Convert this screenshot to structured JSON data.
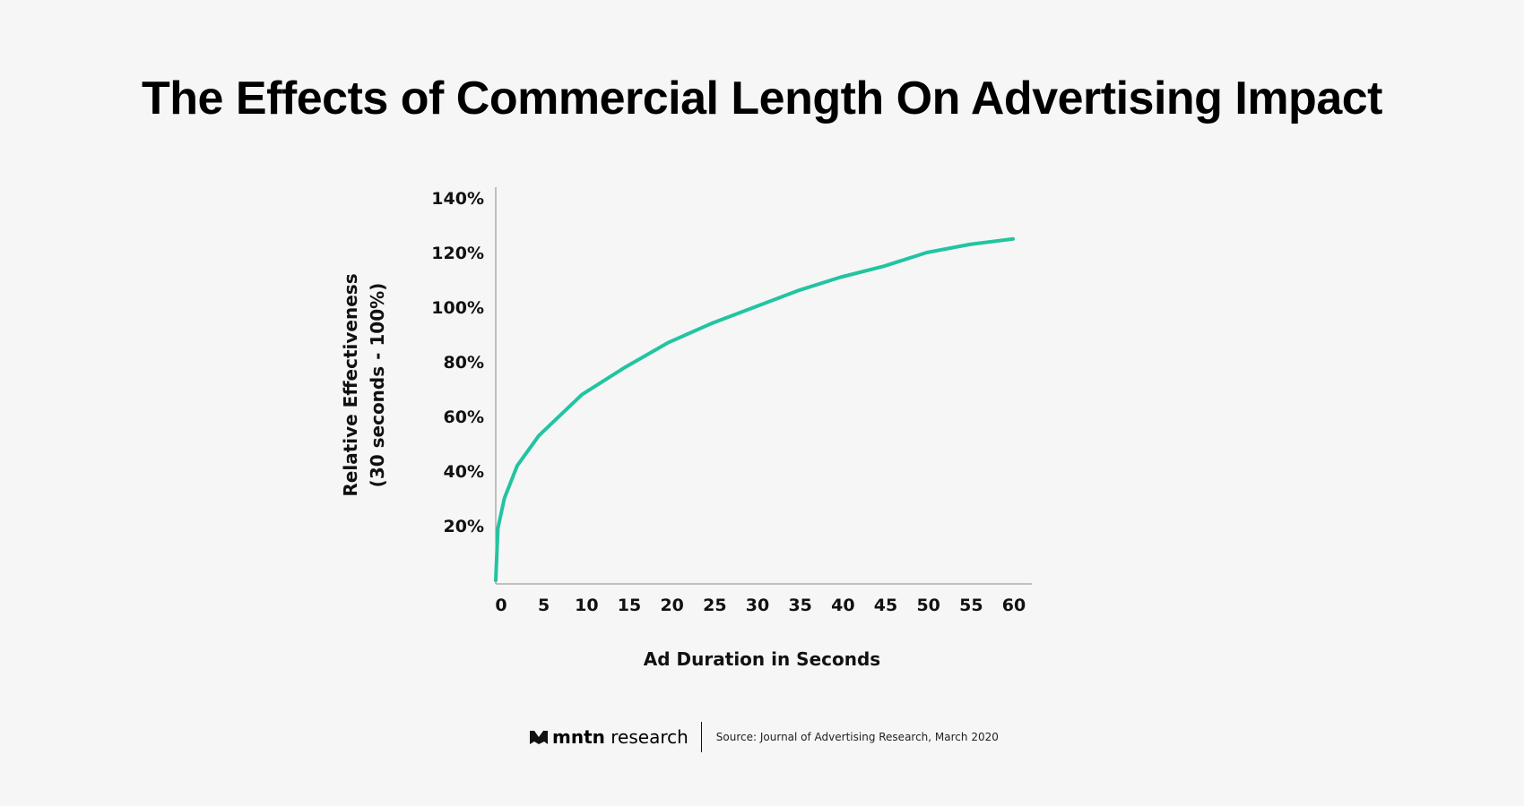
{
  "chart_data": {
    "type": "line",
    "title": "The Effects of Commercial Length On Advertising Impact",
    "xlabel": "Ad Duration in Seconds",
    "ylabel": [
      "Relative Effectiveness",
      "(30 seconds - 100%)"
    ],
    "xlim": [
      0,
      60
    ],
    "ylim": [
      0,
      140
    ],
    "x_ticks": [
      0,
      5,
      10,
      15,
      20,
      25,
      30,
      35,
      40,
      45,
      50,
      55,
      60
    ],
    "y_ticks": [
      "20%",
      "40%",
      "60%",
      "80%",
      "100%",
      "120%",
      "140%"
    ],
    "y_tick_values": [
      20,
      40,
      60,
      80,
      100,
      120,
      140
    ],
    "grid": false,
    "color": "#22c4a1",
    "series": [
      {
        "x": [
          0,
          0.25,
          1,
          2.5,
          5,
          10,
          15,
          20,
          25,
          30,
          35,
          40,
          45,
          50,
          55,
          60
        ],
        "y": [
          0,
          19,
          30,
          42,
          53,
          68,
          78,
          87,
          94,
          100,
          106,
          111,
          115,
          120,
          123,
          125
        ]
      }
    ]
  },
  "footer": {
    "logo_text_bold": "mntn",
    "logo_text": "research",
    "source": "Source: Journal of Advertising Research, March 2020"
  }
}
